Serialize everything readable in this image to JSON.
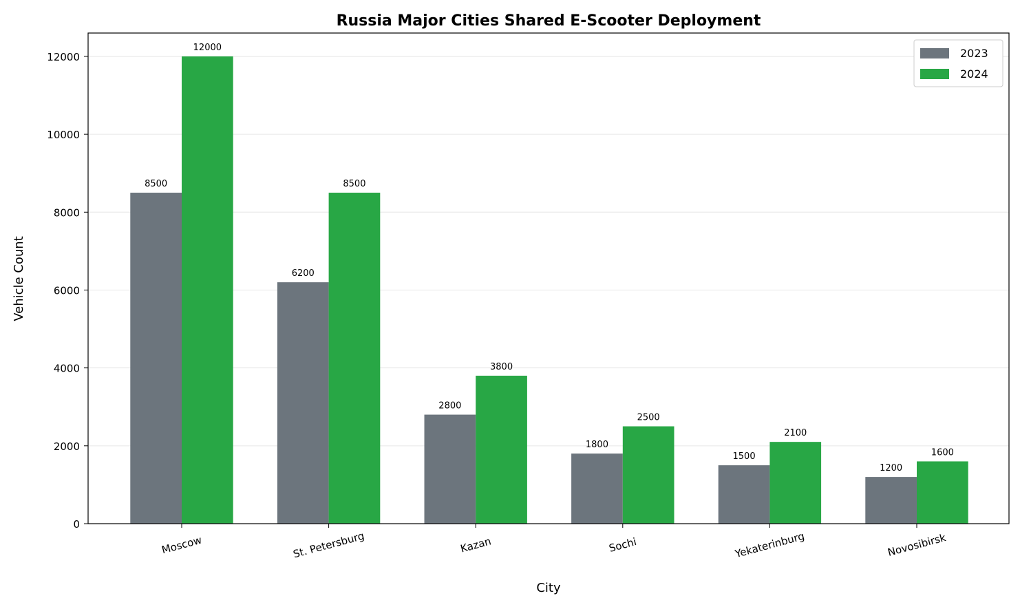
{
  "chart_data": {
    "type": "bar",
    "title": "Russia Major Cities Shared E-Scooter Deployment",
    "xlabel": "City",
    "ylabel": "Vehicle Count",
    "categories": [
      "Moscow",
      "St. Petersburg",
      "Kazan",
      "Sochi",
      "Yekaterinburg",
      "Novosibirsk"
    ],
    "series": [
      {
        "name": "2023",
        "color": "#6c757d",
        "values": [
          8500,
          6200,
          2800,
          1800,
          1500,
          1200
        ]
      },
      {
        "name": "2024",
        "color": "#28a745",
        "values": [
          12000,
          8500,
          3800,
          2500,
          2100,
          1600
        ]
      }
    ],
    "ylim": [
      0,
      12600
    ],
    "yticks": [
      0,
      2000,
      4000,
      6000,
      8000,
      10000,
      12000
    ],
    "grid": "horizontal",
    "legend_position": "top-right"
  }
}
